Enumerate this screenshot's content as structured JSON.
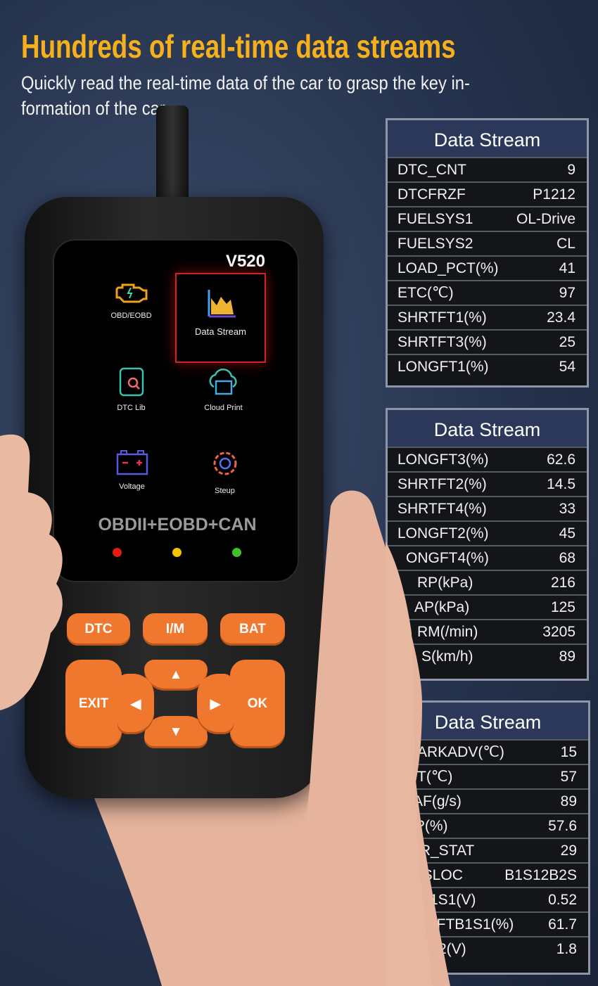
{
  "header": {
    "title": "Hundreds of real-time data streams",
    "subtitle": "Quickly read the real-time data of the car to grasp the key in-formation of the car"
  },
  "device": {
    "model": "V520",
    "menu": [
      {
        "label": "OBD/EOBD",
        "icon": "engine-icon"
      },
      {
        "label": "Data Stream",
        "icon": "chart-icon",
        "selected": true
      },
      {
        "label": "DTC Lib",
        "icon": "document-search-icon"
      },
      {
        "label": "Cloud Print",
        "icon": "cloud-print-icon"
      },
      {
        "label": "Voltage",
        "icon": "battery-icon"
      },
      {
        "label": "Steup",
        "icon": "gear-icon"
      }
    ],
    "protocols": "OBDII+EOBD+CAN",
    "leds": [
      "#e51c0e",
      "#f5c400",
      "#3fbf2a"
    ],
    "buttons": {
      "dtc": "DTC",
      "im": "I/M",
      "bat": "BAT",
      "exit": "EXIT",
      "ok": "OK"
    },
    "accent": "#f0782e"
  },
  "tables": [
    {
      "title": "Data Stream",
      "rows": [
        [
          "DTC_CNT",
          "9"
        ],
        [
          "DTCFRZF",
          "P1212"
        ],
        [
          "FUELSYS1",
          "OL-Drive"
        ],
        [
          "FUELSYS2",
          "CL"
        ],
        [
          "LOAD_PCT(%)",
          "41"
        ],
        [
          "ETC(℃)",
          "97"
        ],
        [
          "SHRTFT1(%)",
          "23.4"
        ],
        [
          "SHRTFT3(%)",
          "25"
        ],
        [
          "LONGFT1(%)",
          "54"
        ]
      ]
    },
    {
      "title": "Data Stream",
      "rows": [
        [
          "LONGFT3(%)",
          "62.6"
        ],
        [
          "SHRTFT2(%)",
          "14.5"
        ],
        [
          "SHRTFT4(%)",
          "33"
        ],
        [
          "LONGFT2(%)",
          "45"
        ],
        [
          "ONGFT4(%)",
          "68"
        ],
        [
          "RP(kPa)",
          "216"
        ],
        [
          "AP(kPa)",
          "125"
        ],
        [
          "RM(/min)",
          "3205"
        ],
        [
          "S(km/h)",
          "89"
        ]
      ]
    },
    {
      "title": "Data Stream",
      "rows": [
        [
          "ARKADV(℃)",
          "15"
        ],
        [
          "T(℃)",
          "57"
        ],
        [
          "AF(g/s)",
          "89"
        ],
        [
          "TP(%)",
          "57.6"
        ],
        [
          "AIR_STAT",
          "29"
        ],
        [
          "2SLOC",
          "B1S12B2S"
        ],
        [
          "B1S1(V)",
          "0.52"
        ],
        [
          "RTFTB1S1(%)",
          "61.7"
        ],
        [
          "S2(V)",
          "1.8"
        ]
      ]
    }
  ]
}
